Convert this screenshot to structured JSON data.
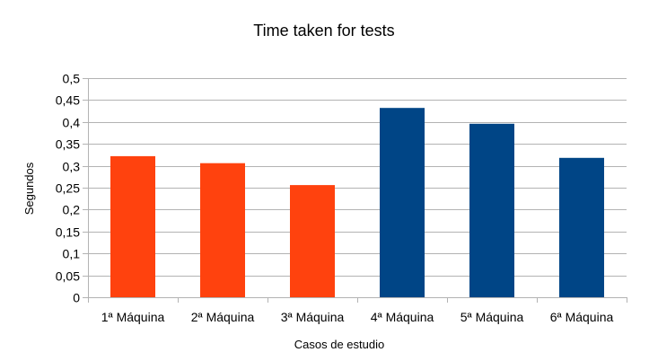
{
  "chart_data": {
    "type": "bar",
    "title": "Time taken for tests",
    "xlabel": "Casos de estudio",
    "ylabel": "Segundos",
    "categories": [
      "1ª Máquina",
      "2ª Máquina",
      "3ª Máquina",
      "4ª Máquina",
      "5ª Máquina",
      "6ª Máquina"
    ],
    "values": [
      0.322,
      0.306,
      0.256,
      0.432,
      0.396,
      0.318
    ],
    "bar_colors": [
      "#ff420e",
      "#ff420e",
      "#ff420e",
      "#004586",
      "#004586",
      "#004586"
    ],
    "ylim": [
      0,
      0.5
    ],
    "yticks": [
      "0",
      "0,05",
      "0,1",
      "0,15",
      "0,2",
      "0,25",
      "0,3",
      "0,35",
      "0,4",
      "0,45",
      "0,5"
    ],
    "grid": true,
    "legend": "none"
  }
}
